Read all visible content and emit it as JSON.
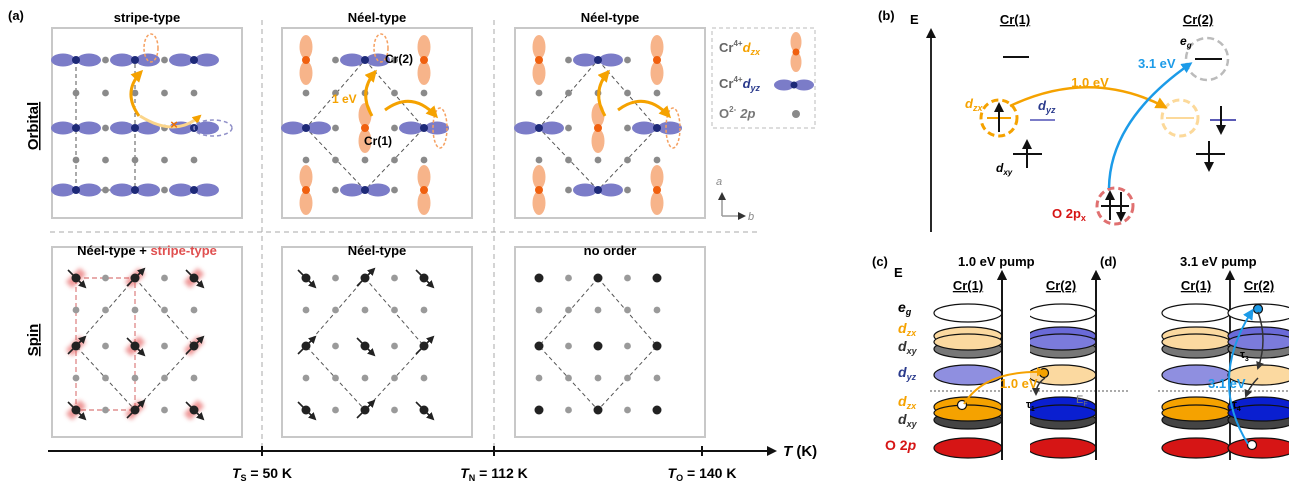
{
  "panel_labels": {
    "a": "(a)",
    "b": "(b)",
    "c": "(c)",
    "d": "(d)"
  },
  "rows": {
    "orbital": "Orbital",
    "spin": "Spin"
  },
  "orbital_panels": [
    "stripe-type",
    "Néel-type",
    "Néel-type"
  ],
  "spin_panels": {
    "p1_main": "Néel-type + ",
    "p1_extra": "stripe-type",
    "p2": "Néel-type",
    "p3": "no order"
  },
  "orbital_labels": {
    "cr2": "Cr(2)",
    "cr1": "Cr(1)",
    "energy": "1 eV",
    "cross": "×"
  },
  "legend": {
    "cr_prefix": "Cr",
    "cr_sup": "4+",
    "dzx_d": "d",
    "dzx_sub": "zx",
    "dyz_d": "d",
    "dyz_sub": "yz",
    "o_prefix": "O",
    "o_sup": "2-",
    "o_orb": "2p"
  },
  "axes_ab": {
    "a": "a",
    "b": "b"
  },
  "temperature_axis": {
    "label_T": "T",
    "label_unit": " (K)",
    "ticks": [
      {
        "sym": "T",
        "sub": "S",
        "val": " = 50 K"
      },
      {
        "sym": "T",
        "sub": "N",
        "val": " = 112 K"
      },
      {
        "sym": "T",
        "sub": "O",
        "val": " = 140 K"
      }
    ]
  },
  "panel_b": {
    "axis": "E",
    "cr1": "Cr(1)",
    "cr2": "Cr(2)",
    "eg_e": "e",
    "eg_g": "g",
    "dzx_d": "d",
    "dzx_sub": "zx",
    "dyz_d": "d",
    "dyz_sub": "yz",
    "dxy_d": "d",
    "dxy_sub": "xy",
    "o2p": "O 2p",
    "o2p_sub": "x",
    "e1": "1.0 eV",
    "e3": "3.1 eV"
  },
  "panel_c": {
    "title": "1.0 eV pump",
    "axis": "E",
    "cr1": "Cr(1)",
    "cr2": "Cr(2)",
    "levels": {
      "eg_e": "e",
      "eg_g": "g",
      "d": "d",
      "zx": "zx",
      "xy": "xy",
      "yz": "yz",
      "o2p_o": "O 2",
      "o2p_p": "p"
    },
    "energy": "1.0 eV",
    "tau1": "τ",
    "tau1_sub": "1",
    "ef": "E",
    "ef_sub": "F"
  },
  "panel_d": {
    "title": "3.1 eV pump",
    "cr1": "Cr(1)",
    "cr2": "Cr(2)",
    "energy": "3.1 eV",
    "tau3": "τ",
    "tau3_sub": "3",
    "tau4": "τ",
    "tau4_sub": "4"
  },
  "colors": {
    "orange": "#f5a200",
    "orange_dot": "#f0600f",
    "lobe_orange": "#f7b48a",
    "blue_lobe": "#7b7cc8",
    "navy_dot": "#1e2a78",
    "blue_arrow": "#1c9be8",
    "red": "#d61515",
    "frame": "#c8c8c8"
  }
}
